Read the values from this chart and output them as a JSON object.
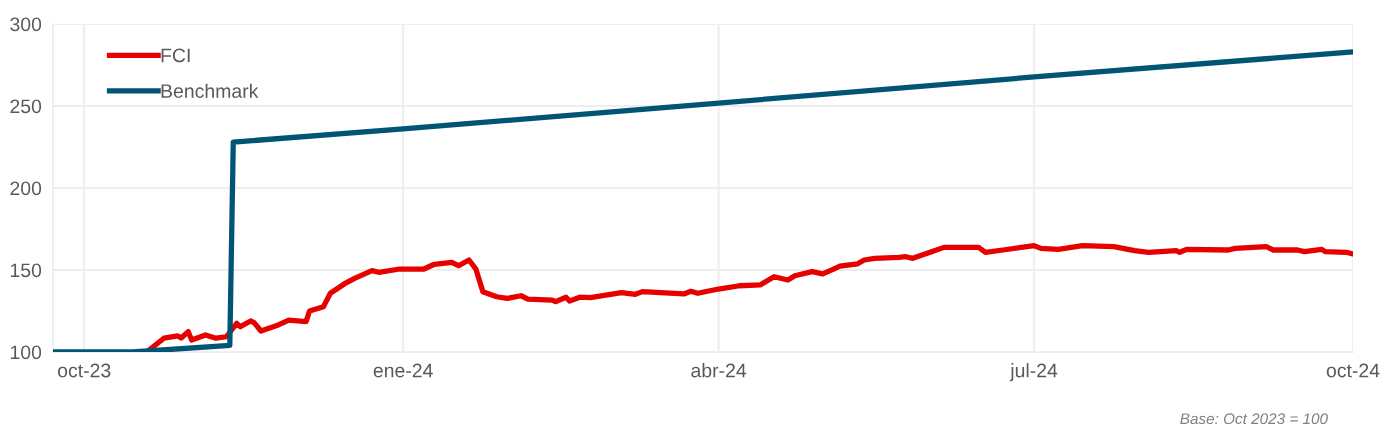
{
  "chart_data": {
    "type": "line",
    "xlim": [
      "2023-09-22",
      "2024-10-01"
    ],
    "xticks": [
      {
        "value": "2023-10-01",
        "label": "oct-23"
      },
      {
        "value": "2024-01-01",
        "label": "ene-24"
      },
      {
        "value": "2024-04-01",
        "label": "abr-24"
      },
      {
        "value": "2024-07-01",
        "label": "jul-24"
      },
      {
        "value": "2024-10-01",
        "label": "oct-24"
      }
    ],
    "ylim": [
      100,
      300
    ],
    "yticks": [
      100,
      150,
      200,
      250,
      300
    ],
    "grid": true,
    "legend": "top left",
    "line_style": "solid",
    "marker": "none",
    "annotations": [
      "Base: Oct 2023 = 100"
    ],
    "series": [
      {
        "name": "FCI",
        "color": "#e60000",
        "x": [
          "2023-10-19",
          "2023-10-24",
          "2023-10-28",
          "2023-10-29",
          "2023-10-31",
          "2023-11-01",
          "2023-11-05",
          "2023-11-08",
          "2023-11-11",
          "2023-11-14",
          "2023-11-15",
          "2023-11-18",
          "2023-11-19",
          "2023-11-21",
          "2023-11-26",
          "2023-11-29",
          "2023-12-04",
          "2023-12-05",
          "2023-12-09",
          "2023-12-11",
          "2023-12-15",
          "2023-12-18",
          "2023-12-23",
          "2023-12-25",
          "2023-12-31",
          "2024-01-07",
          "2024-01-10",
          "2024-01-15",
          "2024-01-17",
          "2024-01-20",
          "2024-01-22",
          "2024-01-24",
          "2024-01-28",
          "2024-01-31",
          "2024-02-04",
          "2024-02-06",
          "2024-02-13",
          "2024-02-14",
          "2024-02-17",
          "2024-02-18",
          "2024-02-21",
          "2024-02-24",
          "2024-03-04",
          "2024-03-08",
          "2024-03-10",
          "2024-03-22",
          "2024-03-24",
          "2024-03-26",
          "2024-04-01",
          "2024-04-07",
          "2024-04-13",
          "2024-04-17",
          "2024-04-21",
          "2024-04-23",
          "2024-04-28",
          "2024-05-01",
          "2024-05-04",
          "2024-05-06",
          "2024-05-11",
          "2024-05-13",
          "2024-05-16",
          "2024-05-23",
          "2024-05-25",
          "2024-05-27",
          "2024-06-01",
          "2024-06-05",
          "2024-06-11",
          "2024-06-15",
          "2024-06-17",
          "2024-06-22",
          "2024-07-01",
          "2024-07-03",
          "2024-07-08",
          "2024-07-15",
          "2024-07-24",
          "2024-07-30",
          "2024-08-03",
          "2024-08-11",
          "2024-08-12",
          "2024-08-14",
          "2024-08-26",
          "2024-08-28",
          "2024-09-06",
          "2024-09-08",
          "2024-09-15",
          "2024-09-17",
          "2024-09-22",
          "2024-09-23",
          "2024-09-29",
          "2024-10-01"
        ],
        "values": [
          100,
          108.4,
          109.8,
          108.5,
          112.4,
          107.3,
          110.4,
          108.4,
          109.3,
          117.5,
          115.4,
          118.9,
          117.9,
          112.8,
          116.5,
          119.5,
          118.5,
          125,
          127.6,
          135.8,
          141.5,
          144.9,
          149.6,
          148.6,
          150.6,
          150.6,
          153.5,
          154.7,
          152.6,
          156.1,
          150.5,
          136.8,
          133.7,
          132.7,
          134.3,
          132.3,
          131.7,
          130.7,
          133.4,
          131.1,
          133.4,
          133.1,
          136.2,
          135.2,
          136.8,
          135.4,
          137,
          135.8,
          138.4,
          140.4,
          140.9,
          145.9,
          143.9,
          146.5,
          149,
          147.6,
          150.4,
          152.4,
          153.7,
          156.1,
          157.1,
          157.7,
          158.1,
          157.1,
          160.8,
          163.8,
          163.8,
          163.8,
          160.8,
          162.2,
          164.8,
          163.2,
          162.6,
          164.8,
          164.2,
          161.8,
          160.8,
          161.8,
          160.8,
          162.6,
          162.2,
          163.2,
          164.2,
          162.2,
          162.2,
          161.2,
          162.6,
          161.2,
          160.8,
          159.8
        ]
      },
      {
        "name": "Benchmark",
        "color": "#005574",
        "x": [
          "2023-09-22",
          "2023-10-15",
          "2023-11-12",
          "2023-11-13",
          "2024-01-01",
          "2024-04-01",
          "2024-07-01",
          "2024-10-01"
        ],
        "values": [
          100,
          100,
          104,
          228,
          236,
          251.8,
          267.7,
          283
        ]
      }
    ]
  }
}
